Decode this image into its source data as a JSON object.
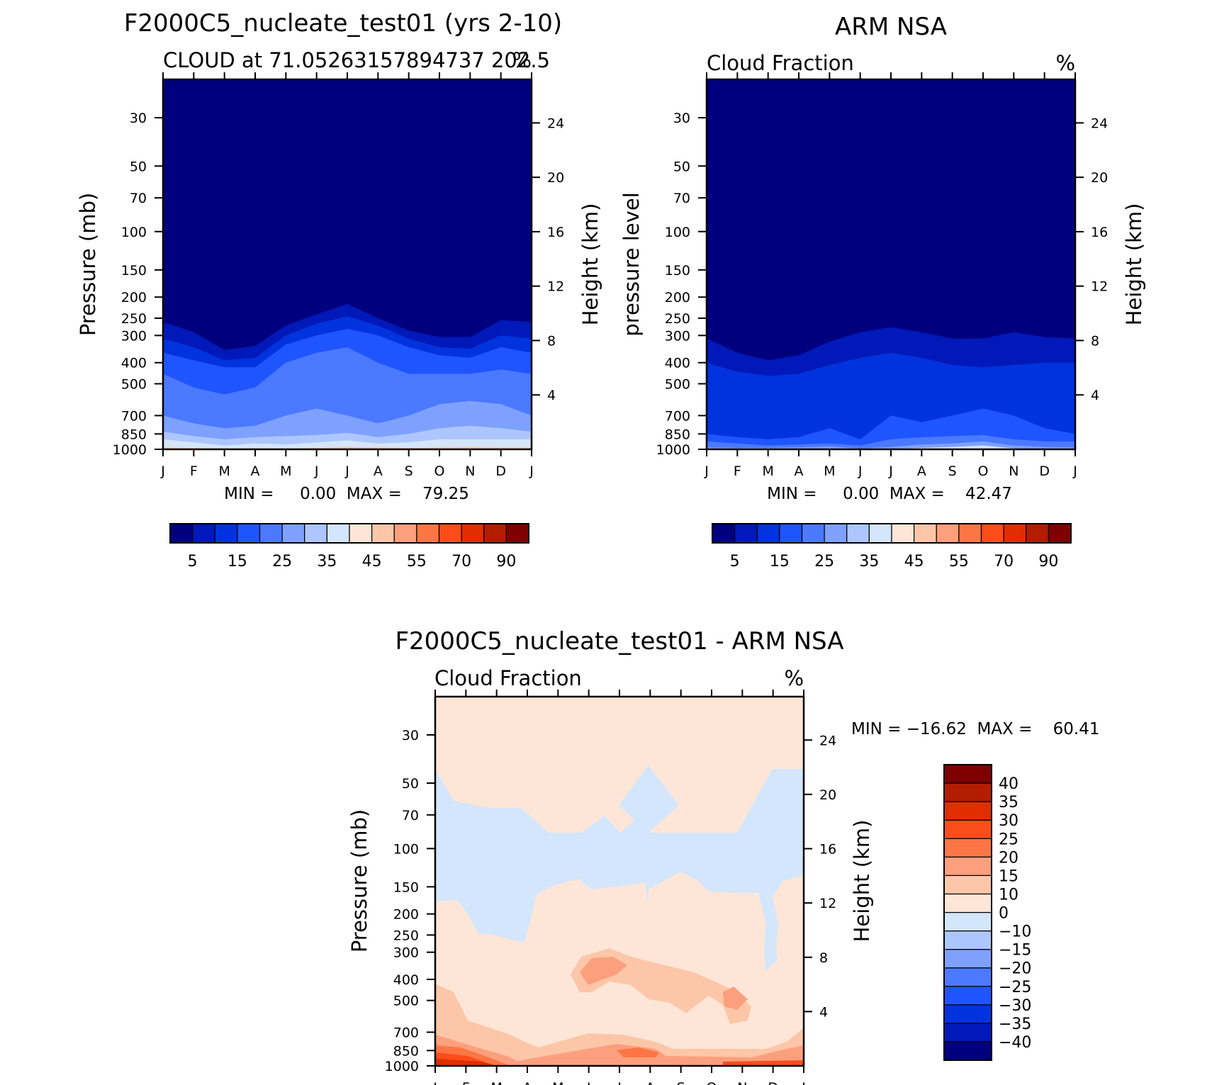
{
  "chart_data": [
    {
      "type": "heatmap",
      "title": "F2000C5_nucleate_test01 (yrs 2-10)",
      "subtitle_left": "CLOUD at 71.05263157894737 202.5",
      "units": "%",
      "ylabel": "Pressure (mb)",
      "ylabel_right": "Height (km)",
      "x_tick_labels": [
        "J",
        "F",
        "M",
        "A",
        "M",
        "J",
        "J",
        "A",
        "S",
        "O",
        "N",
        "D",
        "J"
      ],
      "pressure_ticks": [
        30,
        50,
        70,
        100,
        150,
        200,
        250,
        300,
        400,
        500,
        700,
        850,
        1000
      ],
      "height_ticks": [
        24,
        20,
        16,
        12,
        8,
        4
      ],
      "ylim": [
        1000,
        20
      ],
      "stats_text": "MIN =     0.00  MAX =    79.25",
      "min": 0.0,
      "max": 79.25,
      "colorbar_levels": [
        5,
        10,
        15,
        20,
        25,
        30,
        35,
        40,
        45,
        50,
        55,
        60,
        70,
        80,
        90
      ],
      "colorbar_labels": [
        "5",
        "15",
        "25",
        "35",
        "45",
        "55",
        "70",
        "90"
      ],
      "colors": [
        "#00007f",
        "#0019b8",
        "#0033dd",
        "#1f55ff",
        "#4b79ff",
        "#7ea1ff",
        "#aec6ff",
        "#d4e6fb",
        "#fde6d7",
        "#fdc6a8",
        "#fc9f7d",
        "#fb7644",
        "#fb4d1a",
        "#e02e00",
        "#b21d00",
        "#7e0000"
      ],
      "ridge_contours": [
        {
          "level": 5,
          "pressure": [
            260,
            290,
            350,
            335,
            270,
            240,
            215,
            250,
            285,
            305,
            305,
            255
          ]
        },
        {
          "level": 10,
          "pressure": [
            310,
            340,
            390,
            380,
            300,
            265,
            245,
            270,
            310,
            340,
            345,
            300
          ]
        },
        {
          "level": 15,
          "pressure": [
            360,
            390,
            420,
            420,
            330,
            300,
            280,
            300,
            340,
            370,
            380,
            340
          ]
        },
        {
          "level": 20,
          "pressure": [
            450,
            520,
            560,
            520,
            400,
            360,
            340,
            400,
            450,
            450,
            450,
            430
          ]
        },
        {
          "level": 25,
          "pressure": [
            700,
            760,
            800,
            780,
            700,
            650,
            700,
            760,
            700,
            620,
            600,
            620
          ]
        },
        {
          "level": 30,
          "pressure": [
            830,
            870,
            900,
            880,
            870,
            860,
            840,
            880,
            850,
            800,
            780,
            800
          ]
        },
        {
          "level": 35,
          "pressure": [
            900,
            930,
            960,
            940,
            950,
            930,
            910,
            940,
            930,
            900,
            900,
            900
          ]
        },
        {
          "level": 45,
          "pressure": [
            980,
            985,
            990,
            990,
            990,
            985,
            975,
            980,
            985,
            980,
            975,
            980
          ]
        }
      ]
    },
    {
      "type": "heatmap",
      "title": "ARM NSA",
      "subtitle_left": "Cloud Fraction",
      "units": "%",
      "ylabel": "pressure level",
      "ylabel_right": "Height (km)",
      "x_tick_labels": [
        "J",
        "F",
        "M",
        "A",
        "M",
        "J",
        "J",
        "A",
        "S",
        "O",
        "N",
        "D",
        "J"
      ],
      "pressure_ticks": [
        30,
        50,
        70,
        100,
        150,
        200,
        250,
        300,
        400,
        500,
        700,
        850,
        1000
      ],
      "height_ticks": [
        24,
        20,
        16,
        12,
        8,
        4
      ],
      "ylim": [
        1000,
        20
      ],
      "stats_text": "MIN =     0.00  MAX =    42.47",
      "min": 0.0,
      "max": 42.47,
      "colorbar_levels": [
        5,
        10,
        15,
        20,
        25,
        30,
        35,
        40,
        45,
        50,
        55,
        60,
        70,
        80,
        90
      ],
      "colorbar_labels": [
        "5",
        "15",
        "25",
        "35",
        "45",
        "55",
        "70",
        "90"
      ],
      "colors": [
        "#00007f",
        "#0019b8",
        "#0033dd",
        "#1f55ff",
        "#4b79ff",
        "#7ea1ff",
        "#aec6ff",
        "#d4e6fb",
        "#fde6d7",
        "#fdc6a8",
        "#fc9f7d",
        "#fb7644",
        "#fb4d1a",
        "#e02e00",
        "#b21d00",
        "#7e0000"
      ],
      "ridge_contours": [
        {
          "level": 5,
          "pressure": [
            310,
            360,
            390,
            370,
            320,
            290,
            275,
            290,
            310,
            310,
            290,
            305
          ]
        },
        {
          "level": 10,
          "pressure": [
            400,
            440,
            460,
            450,
            410,
            380,
            360,
            380,
            410,
            420,
            410,
            400
          ]
        },
        {
          "level": 15,
          "pressure": [
            850,
            880,
            900,
            880,
            800,
            900,
            700,
            750,
            700,
            650,
            700,
            800
          ]
        },
        {
          "level": 20,
          "pressure": [
            920,
            940,
            960,
            950,
            940,
            960,
            900,
            880,
            870,
            860,
            900,
            920
          ]
        },
        {
          "level": 25,
          "pressure": [
            980,
            985,
            985,
            980,
            970,
            990,
            975,
            950,
            940,
            920,
            960,
            975
          ]
        },
        {
          "level": 35,
          "pressure": [
            1000,
            1000,
            1000,
            1000,
            990,
            1000,
            995,
            985,
            975,
            960,
            990,
            1000
          ]
        }
      ]
    },
    {
      "type": "heatmap",
      "title": "F2000C5_nucleate_test01 - ARM NSA",
      "subtitle_left": "Cloud Fraction",
      "units": "%",
      "ylabel": "Pressure (mb)",
      "ylabel_right": "Height (km)",
      "x_tick_labels": [
        "J",
        "F",
        "M",
        "A",
        "M",
        "J",
        "J",
        "A",
        "S",
        "O",
        "N",
        "D",
        "J"
      ],
      "pressure_ticks": [
        30,
        50,
        70,
        100,
        150,
        200,
        250,
        300,
        400,
        500,
        700,
        850,
        1000
      ],
      "height_ticks": [
        24,
        20,
        16,
        12,
        8,
        4
      ],
      "ylim": [
        1000,
        20
      ],
      "stats_text": "MIN = −16.62  MAX =    60.41",
      "min": -16.62,
      "max": 60.41,
      "colorbar_levels": [
        -40,
        -35,
        -30,
        -25,
        -20,
        -15,
        -10,
        0,
        10,
        15,
        20,
        25,
        30,
        35,
        40
      ],
      "colorbar_labels": [
        "40",
        "35",
        "30",
        "25",
        "20",
        "15",
        "10",
        "0",
        "−10",
        "−15",
        "−20",
        "−25",
        "−30",
        "−35",
        "−40"
      ],
      "colors": [
        "#00007f",
        "#0019b8",
        "#0033dd",
        "#1f55ff",
        "#4b79ff",
        "#7ea1ff",
        "#aec6ff",
        "#d4e6fb",
        "#fde6d7",
        "#fdc6a8",
        "#fc9f7d",
        "#fb7644",
        "#fb4d1a",
        "#e02e00",
        "#b21d00",
        "#7e0000"
      ]
    }
  ]
}
